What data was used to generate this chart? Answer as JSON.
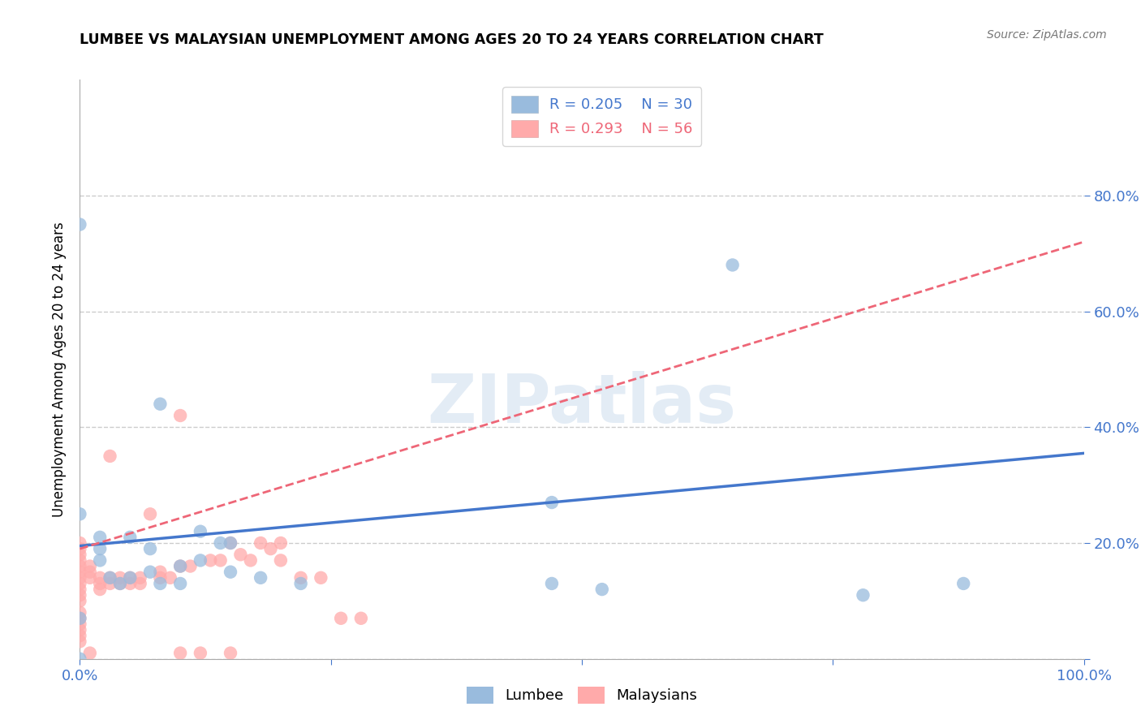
{
  "title": "LUMBEE VS MALAYSIAN UNEMPLOYMENT AMONG AGES 20 TO 24 YEARS CORRELATION CHART",
  "source": "Source: ZipAtlas.com",
  "ylabel": "Unemployment Among Ages 20 to 24 years",
  "lumbee_R": 0.205,
  "lumbee_N": 30,
  "malaysian_R": 0.293,
  "malaysian_N": 56,
  "xlim": [
    0.0,
    1.0
  ],
  "ylim": [
    0.0,
    1.0
  ],
  "lumbee_color": "#99BBDD",
  "malaysian_color": "#FFAAAA",
  "lumbee_line_color": "#4477CC",
  "malaysian_line_color": "#EE6677",
  "tick_color": "#4477CC",
  "background": "#FFFFFF",
  "lumbee_x": [
    0.0,
    0.0,
    0.02,
    0.02,
    0.02,
    0.03,
    0.04,
    0.05,
    0.05,
    0.07,
    0.07,
    0.08,
    0.08,
    0.1,
    0.1,
    0.12,
    0.12,
    0.14,
    0.15,
    0.15,
    0.18,
    0.22,
    0.0,
    0.47,
    0.47,
    0.52,
    0.65,
    0.78,
    0.88,
    0.0
  ],
  "lumbee_y": [
    0.25,
    0.0,
    0.19,
    0.21,
    0.17,
    0.14,
    0.13,
    0.21,
    0.14,
    0.19,
    0.15,
    0.44,
    0.13,
    0.16,
    0.13,
    0.22,
    0.17,
    0.2,
    0.2,
    0.15,
    0.14,
    0.13,
    0.75,
    0.27,
    0.13,
    0.12,
    0.68,
    0.11,
    0.13,
    0.07
  ],
  "malaysian_x": [
    0.0,
    0.0,
    0.0,
    0.0,
    0.0,
    0.0,
    0.0,
    0.0,
    0.0,
    0.0,
    0.0,
    0.0,
    0.0,
    0.0,
    0.0,
    0.0,
    0.0,
    0.01,
    0.01,
    0.01,
    0.01,
    0.02,
    0.02,
    0.02,
    0.03,
    0.03,
    0.03,
    0.04,
    0.04,
    0.05,
    0.05,
    0.06,
    0.06,
    0.07,
    0.08,
    0.08,
    0.09,
    0.1,
    0.1,
    0.1,
    0.11,
    0.12,
    0.13,
    0.14,
    0.15,
    0.15,
    0.16,
    0.17,
    0.18,
    0.19,
    0.2,
    0.2,
    0.22,
    0.24,
    0.26,
    0.28
  ],
  "malaysian_y": [
    0.06,
    0.07,
    0.08,
    0.1,
    0.11,
    0.12,
    0.13,
    0.14,
    0.15,
    0.16,
    0.17,
    0.18,
    0.19,
    0.2,
    0.05,
    0.04,
    0.03,
    0.14,
    0.15,
    0.16,
    0.01,
    0.12,
    0.13,
    0.14,
    0.13,
    0.14,
    0.35,
    0.13,
    0.14,
    0.13,
    0.14,
    0.13,
    0.14,
    0.25,
    0.14,
    0.15,
    0.14,
    0.42,
    0.16,
    0.01,
    0.16,
    0.01,
    0.17,
    0.17,
    0.2,
    0.01,
    0.18,
    0.17,
    0.2,
    0.19,
    0.17,
    0.2,
    0.14,
    0.14,
    0.07,
    0.07
  ],
  "lumbee_line_x0": 0.0,
  "lumbee_line_x1": 1.0,
  "lumbee_line_y0": 0.195,
  "lumbee_line_y1": 0.355,
  "malaysian_line_x0": 0.0,
  "malaysian_line_x1": 1.0,
  "malaysian_line_y0": 0.19,
  "malaysian_line_y1": 0.72
}
